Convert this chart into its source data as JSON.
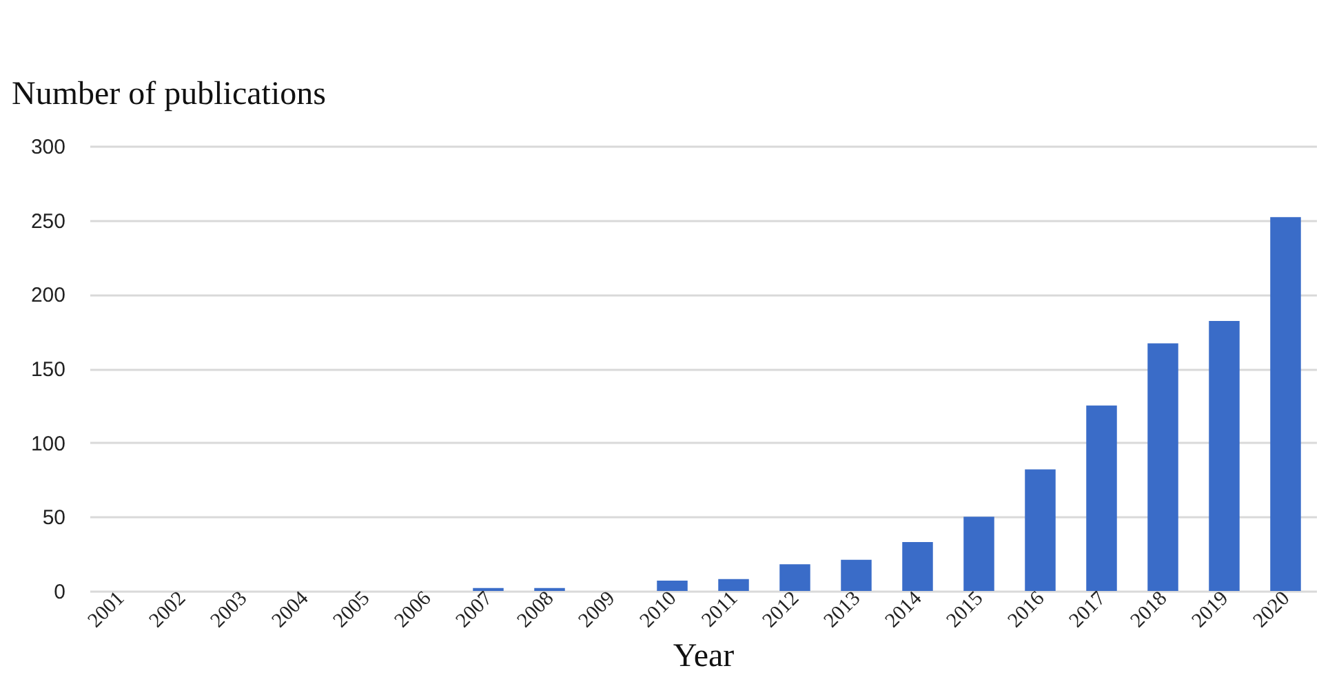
{
  "chart_data": {
    "type": "bar",
    "xlabel": "Year",
    "ylabel": "Number of publications",
    "categories": [
      "2001",
      "2002",
      "2003",
      "2004",
      "2005",
      "2006",
      "2007",
      "2008",
      "2009",
      "2010",
      "2011",
      "2012",
      "2013",
      "2014",
      "2015",
      "2016",
      "2017",
      "2018",
      "2019",
      "2020"
    ],
    "values": [
      0,
      0,
      0,
      0,
      0,
      0,
      2,
      2,
      0,
      7,
      8,
      18,
      21,
      33,
      50,
      82,
      125,
      167,
      182,
      252
    ],
    "color": "#3a6cc8",
    "ylim": [
      0,
      300
    ],
    "yticks": [
      0,
      50,
      100,
      150,
      200,
      250,
      300
    ],
    "grid": "y"
  }
}
